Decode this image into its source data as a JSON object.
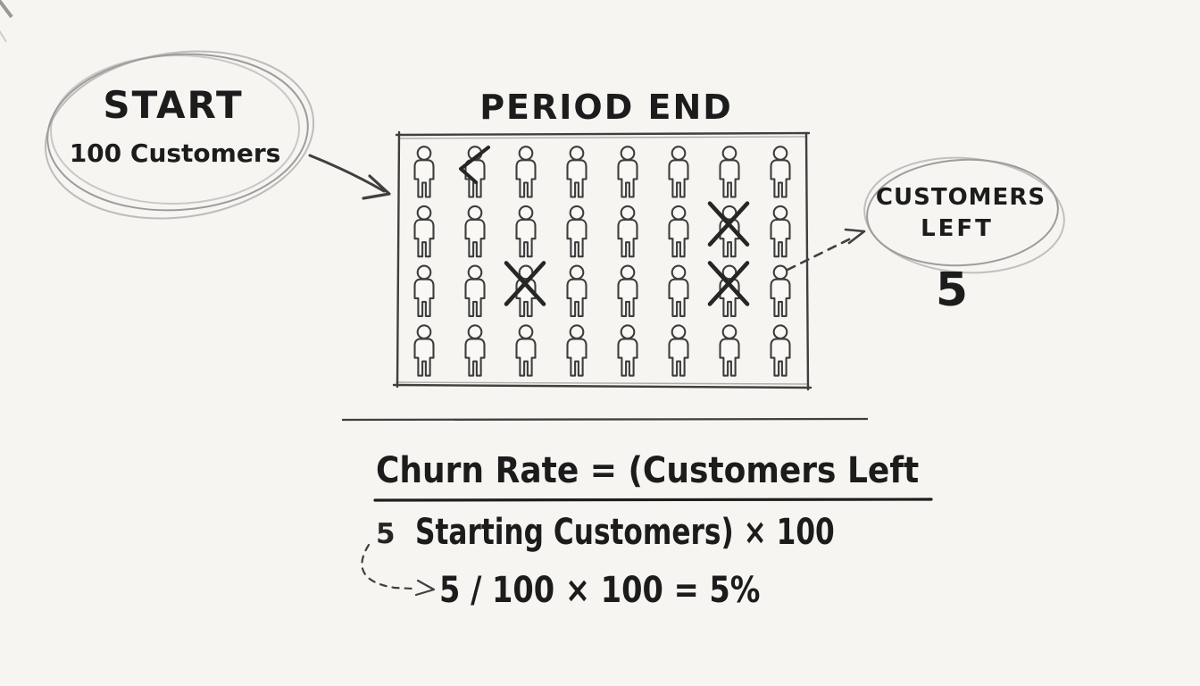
{
  "title": "Churn Rate hand-drawn explainer diagram",
  "colors": {
    "background": "#f6f5f2",
    "ink": "#1c1c1c",
    "sketch_gray": "#9c9c9c",
    "person_outline": "#3d3d3d"
  },
  "start_bubble": {
    "title": "START",
    "subtitle": "100 Customers"
  },
  "period": {
    "title": "PERIOD END"
  },
  "grid": {
    "rows": 4,
    "cols": 8,
    "total_people": 32,
    "crossed_out": [
      [
        1,
        6
      ],
      [
        2,
        2
      ],
      [
        2,
        6
      ]
    ],
    "partial_mark": [
      0,
      1
    ],
    "icon": "person-icon",
    "cross_icon": "x-mark-icon"
  },
  "customers_left_bubble": {
    "line1": "CUSTOMERS",
    "line2": "LEFT",
    "value": "5"
  },
  "formula": {
    "numerator": "Churn Rate = (Customers Left",
    "denominator_prefix": "5",
    "denominator": "Starting Customers) × 100",
    "result": "5 / 100 × 100 = 5%"
  }
}
